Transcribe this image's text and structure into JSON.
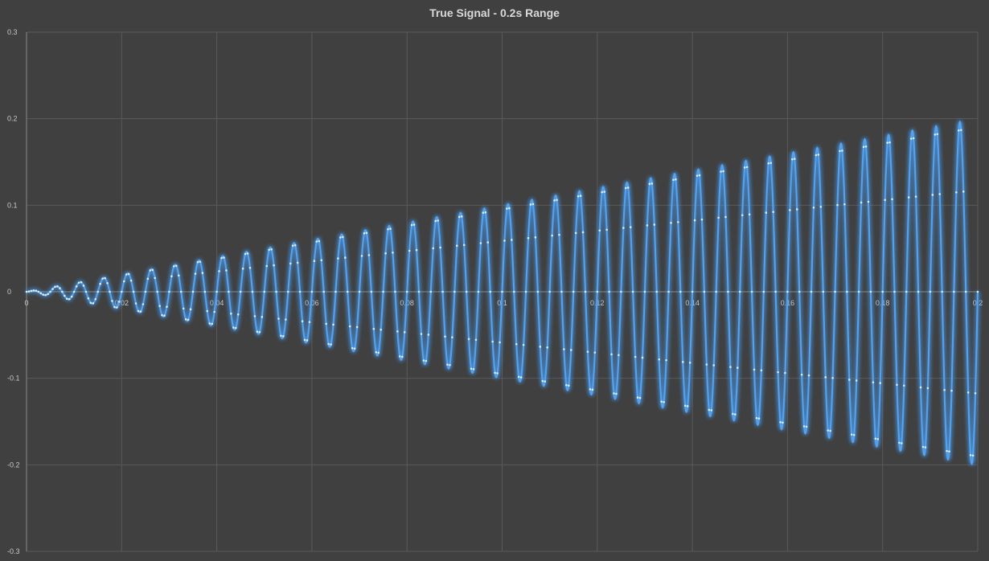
{
  "chart_data": {
    "type": "line",
    "title": "True Signal - 0.2s Range",
    "xlabel": "",
    "ylabel": "",
    "xlim": [
      0,
      0.2
    ],
    "ylim": [
      -0.3,
      0.3
    ],
    "x_ticks": [
      0,
      0.02,
      0.04,
      0.06,
      0.08,
      0.1,
      0.12,
      0.14,
      0.16,
      0.18,
      0.2
    ],
    "x_tick_labels": [
      "0",
      "0.02",
      "0.04",
      "0.06",
      "0.08",
      "0.1",
      "0.12",
      "0.14",
      "0.16",
      "0.18",
      "0.2"
    ],
    "y_ticks": [
      -0.3,
      -0.2,
      -0.1,
      0,
      0.1,
      0.2,
      0.3
    ],
    "y_tick_labels": [
      "-0.3",
      "-0.2",
      "-0.1",
      "0",
      "0.1",
      "0.2",
      "0.3"
    ],
    "grid": true,
    "legend": "none",
    "series": [
      {
        "color": "#5ba3e8",
        "marker": "dot",
        "signal": {
          "form": "amplitude-modulated sine",
          "frequency_hz": 200,
          "amplitude_at_0s": 0,
          "amplitude_at_0.2s": 0.2,
          "sample_interval_s": 0.0005,
          "x_range": [
            0,
            0.2
          ]
        }
      }
    ]
  },
  "colors": {
    "background": "#404040",
    "grid": "#5a5a5a",
    "axis": "#8a8a8a",
    "tick_label": "#c8c8c8",
    "title": "#d9d9d9",
    "line": "#5ba3e8",
    "glow": "#4aa3ff",
    "marker": "#d6ecff"
  }
}
